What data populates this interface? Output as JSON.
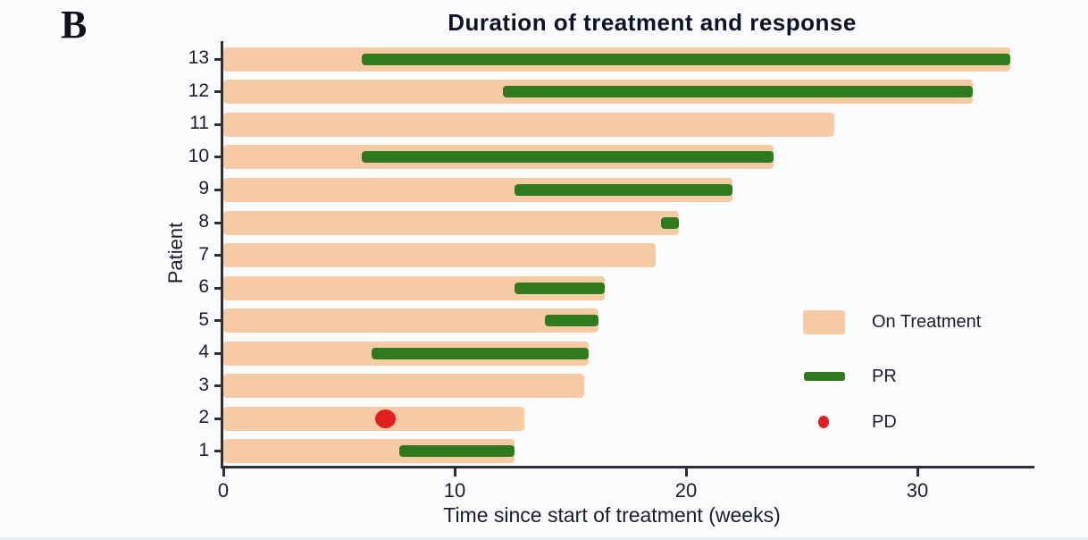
{
  "panel_label": "B",
  "title": "Duration of treatment and response",
  "ylabel": "Patient",
  "xlabel": "Time since start of treatment (weeks)",
  "legend": [
    {
      "label": "On Treatment",
      "marker": "bar-swatch",
      "color": "#f6cba3"
    },
    {
      "label": "PR",
      "marker": "line-swatch",
      "color": "#2e7b1e"
    },
    {
      "label": "PD",
      "marker": "dot-swatch",
      "color": "#e01f1f"
    }
  ],
  "colors": {
    "on_treatment": "#f6cba3",
    "pr": "#2e7b1e",
    "pd": "#e01f1f",
    "axis": "#2e2e3a",
    "text": "#1c1c30",
    "background": "#fafbfd"
  },
  "chart_data": {
    "type": "bar",
    "orientation": "horizontal",
    "title": "Duration of treatment and response",
    "xlabel": "Time since start of treatment (weeks)",
    "ylabel": "Patient",
    "xlim": [
      0,
      35
    ],
    "xticks": [
      0,
      10,
      20,
      30
    ],
    "grid": false,
    "legend_position": "right-middle",
    "patients": [
      {
        "id": 13,
        "on_treatment_weeks": 34.0,
        "pr_interval": [
          6.0,
          34.0
        ],
        "pd_at": null
      },
      {
        "id": 12,
        "on_treatment_weeks": 32.4,
        "pr_interval": [
          12.1,
          32.4
        ],
        "pd_at": null
      },
      {
        "id": 11,
        "on_treatment_weeks": 26.4,
        "pr_interval": null,
        "pd_at": null
      },
      {
        "id": 10,
        "on_treatment_weeks": 23.8,
        "pr_interval": [
          6.0,
          23.8
        ],
        "pd_at": null
      },
      {
        "id": 9,
        "on_treatment_weeks": 22.0,
        "pr_interval": [
          12.6,
          22.0
        ],
        "pd_at": null
      },
      {
        "id": 8,
        "on_treatment_weeks": 19.7,
        "pr_interval": [
          18.9,
          19.7
        ],
        "pd_at": null
      },
      {
        "id": 7,
        "on_treatment_weeks": 18.7,
        "pr_interval": null,
        "pd_at": null
      },
      {
        "id": 6,
        "on_treatment_weeks": 16.5,
        "pr_interval": [
          12.6,
          16.5
        ],
        "pd_at": null
      },
      {
        "id": 5,
        "on_treatment_weeks": 16.2,
        "pr_interval": [
          13.9,
          16.2
        ],
        "pd_at": null
      },
      {
        "id": 4,
        "on_treatment_weeks": 15.8,
        "pr_interval": [
          6.4,
          15.8
        ],
        "pd_at": null
      },
      {
        "id": 3,
        "on_treatment_weeks": 15.6,
        "pr_interval": null,
        "pd_at": null
      },
      {
        "id": 2,
        "on_treatment_weeks": 13.0,
        "pr_interval": null,
        "pd_at": 7.0
      },
      {
        "id": 1,
        "on_treatment_weeks": 12.6,
        "pr_interval": [
          7.6,
          12.6
        ],
        "pd_at": null
      }
    ]
  }
}
